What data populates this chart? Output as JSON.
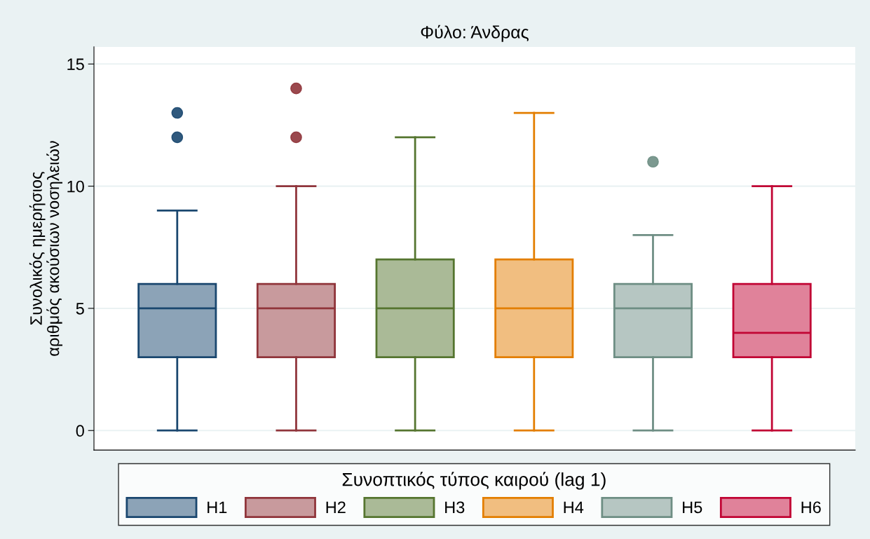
{
  "chart_data": {
    "type": "box",
    "title": "Φύλο: Άνδρας",
    "ylabel": "Συνολικός ημερήσιος\nαριθμός ακούσιων νοσηλειών",
    "legend_title": "Συνοπτικός τύπος καιρού (lag 1)",
    "categories": [
      null
    ],
    "series": [
      {
        "name": "H1",
        "color": "#1a476f",
        "boxes": [
          {
            "low": 0,
            "q1": 3,
            "median": 5,
            "q3": 6,
            "high": 9,
            "outliers": [
              12,
              13
            ]
          }
        ]
      },
      {
        "name": "H2",
        "color": "#90353b",
        "boxes": [
          {
            "low": 0,
            "q1": 3,
            "median": 5,
            "q3": 6,
            "high": 10,
            "outliers": [
              12,
              14
            ]
          }
        ]
      },
      {
        "name": "H3",
        "color": "#55752f",
        "boxes": [
          {
            "low": 0,
            "q1": 3,
            "median": 5,
            "q3": 7,
            "high": 12
          }
        ]
      },
      {
        "name": "H4",
        "color": "#e37e00",
        "boxes": [
          {
            "low": 0,
            "q1": 3,
            "median": 5,
            "q3": 7,
            "high": 13
          }
        ]
      },
      {
        "name": "H5",
        "color": "#6e8e84",
        "boxes": [
          {
            "low": 0,
            "q1": 3,
            "median": 5,
            "q3": 6,
            "high": 8,
            "outliers": [
              11
            ]
          }
        ]
      },
      {
        "name": "H6",
        "color": "#c10534",
        "boxes": [
          {
            "low": 0,
            "q1": 3,
            "median": 4,
            "q3": 6,
            "high": 10
          }
        ]
      }
    ],
    "ylim": [
      -0.8,
      15.7
    ],
    "yticks": [
      0,
      5,
      10,
      15
    ],
    "grid": "y",
    "legend": "bottom",
    "tick_labels": "y"
  }
}
